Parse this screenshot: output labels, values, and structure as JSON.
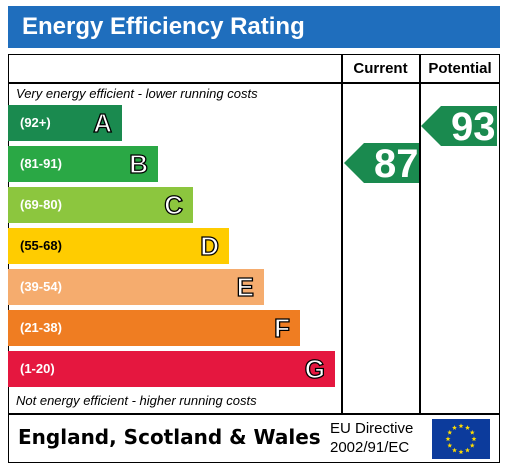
{
  "title": "Energy Efficiency Rating",
  "columns": {
    "current": "Current",
    "potential": "Potential"
  },
  "top_note": "Very energy efficient - lower running costs",
  "bottom_note": "Not energy efficient - higher running costs",
  "footer": {
    "country": "England, Scotland & Wales",
    "eu_line1": "EU Directive",
    "eu_line2": "2002/91/EC"
  },
  "colors": {
    "header": "#1f6ebd",
    "arrow": "#1a8a4f",
    "flag": "#0c3b9c",
    "star": "#ffdd00"
  },
  "chart_data": {
    "type": "bar",
    "categories": [
      "A",
      "B",
      "C",
      "D",
      "E",
      "F",
      "G"
    ],
    "bands": [
      {
        "letter": "A",
        "range": "(92+)",
        "min": 92,
        "max": 100,
        "color": "#1a8a4f"
      },
      {
        "letter": "B",
        "range": "(81-91)",
        "min": 81,
        "max": 91,
        "color": "#2aa845"
      },
      {
        "letter": "C",
        "range": "(69-80)",
        "min": 69,
        "max": 80,
        "color": "#8cc63e"
      },
      {
        "letter": "D",
        "range": "(55-68)",
        "min": 55,
        "max": 68,
        "color": "#ffcc00"
      },
      {
        "letter": "E",
        "range": "(39-54)",
        "min": 39,
        "max": 54,
        "color": "#f5ac6e"
      },
      {
        "letter": "F",
        "range": "(21-38)",
        "min": 21,
        "max": 38,
        "color": "#ef7d22"
      },
      {
        "letter": "G",
        "range": "(1-20)",
        "min": 1,
        "max": 20,
        "color": "#e5173f"
      }
    ],
    "current": 87,
    "potential": 93
  }
}
